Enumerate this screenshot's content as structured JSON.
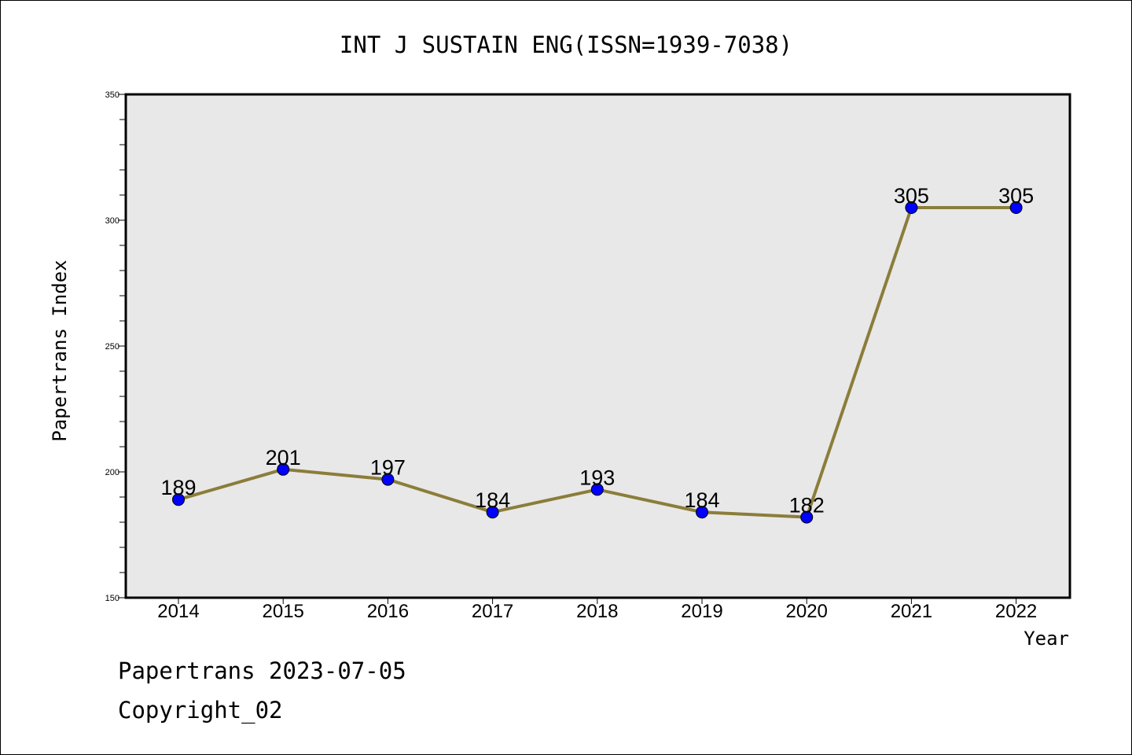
{
  "chart_data": {
    "type": "line",
    "title": "INT J SUSTAIN ENG(ISSN=1939-7038)",
    "xlabel": "Year",
    "ylabel": "Papertrans Index",
    "categories": [
      "2014",
      "2015",
      "2016",
      "2017",
      "2018",
      "2019",
      "2020",
      "2021",
      "2022"
    ],
    "series": [
      {
        "values": [
          189,
          201,
          197,
          184,
          193,
          184,
          182,
          305,
          305
        ],
        "data_labels": [
          "189",
          "201",
          "197",
          "184",
          "193",
          "184",
          "182",
          "305",
          "305"
        ]
      }
    ],
    "ylim": [
      150,
      350
    ],
    "yticks": [
      150,
      200,
      250,
      300,
      350
    ],
    "ytick_labels": [
      "150",
      "200",
      "250",
      "300",
      "350"
    ],
    "grid": false,
    "colors": {
      "line": "#8b7d3a",
      "marker": "#0000ff",
      "plot_background": "#e8e8e8"
    }
  },
  "footer": {
    "line1": "Papertrans 2023-07-05",
    "line2": "Copyright_02"
  }
}
